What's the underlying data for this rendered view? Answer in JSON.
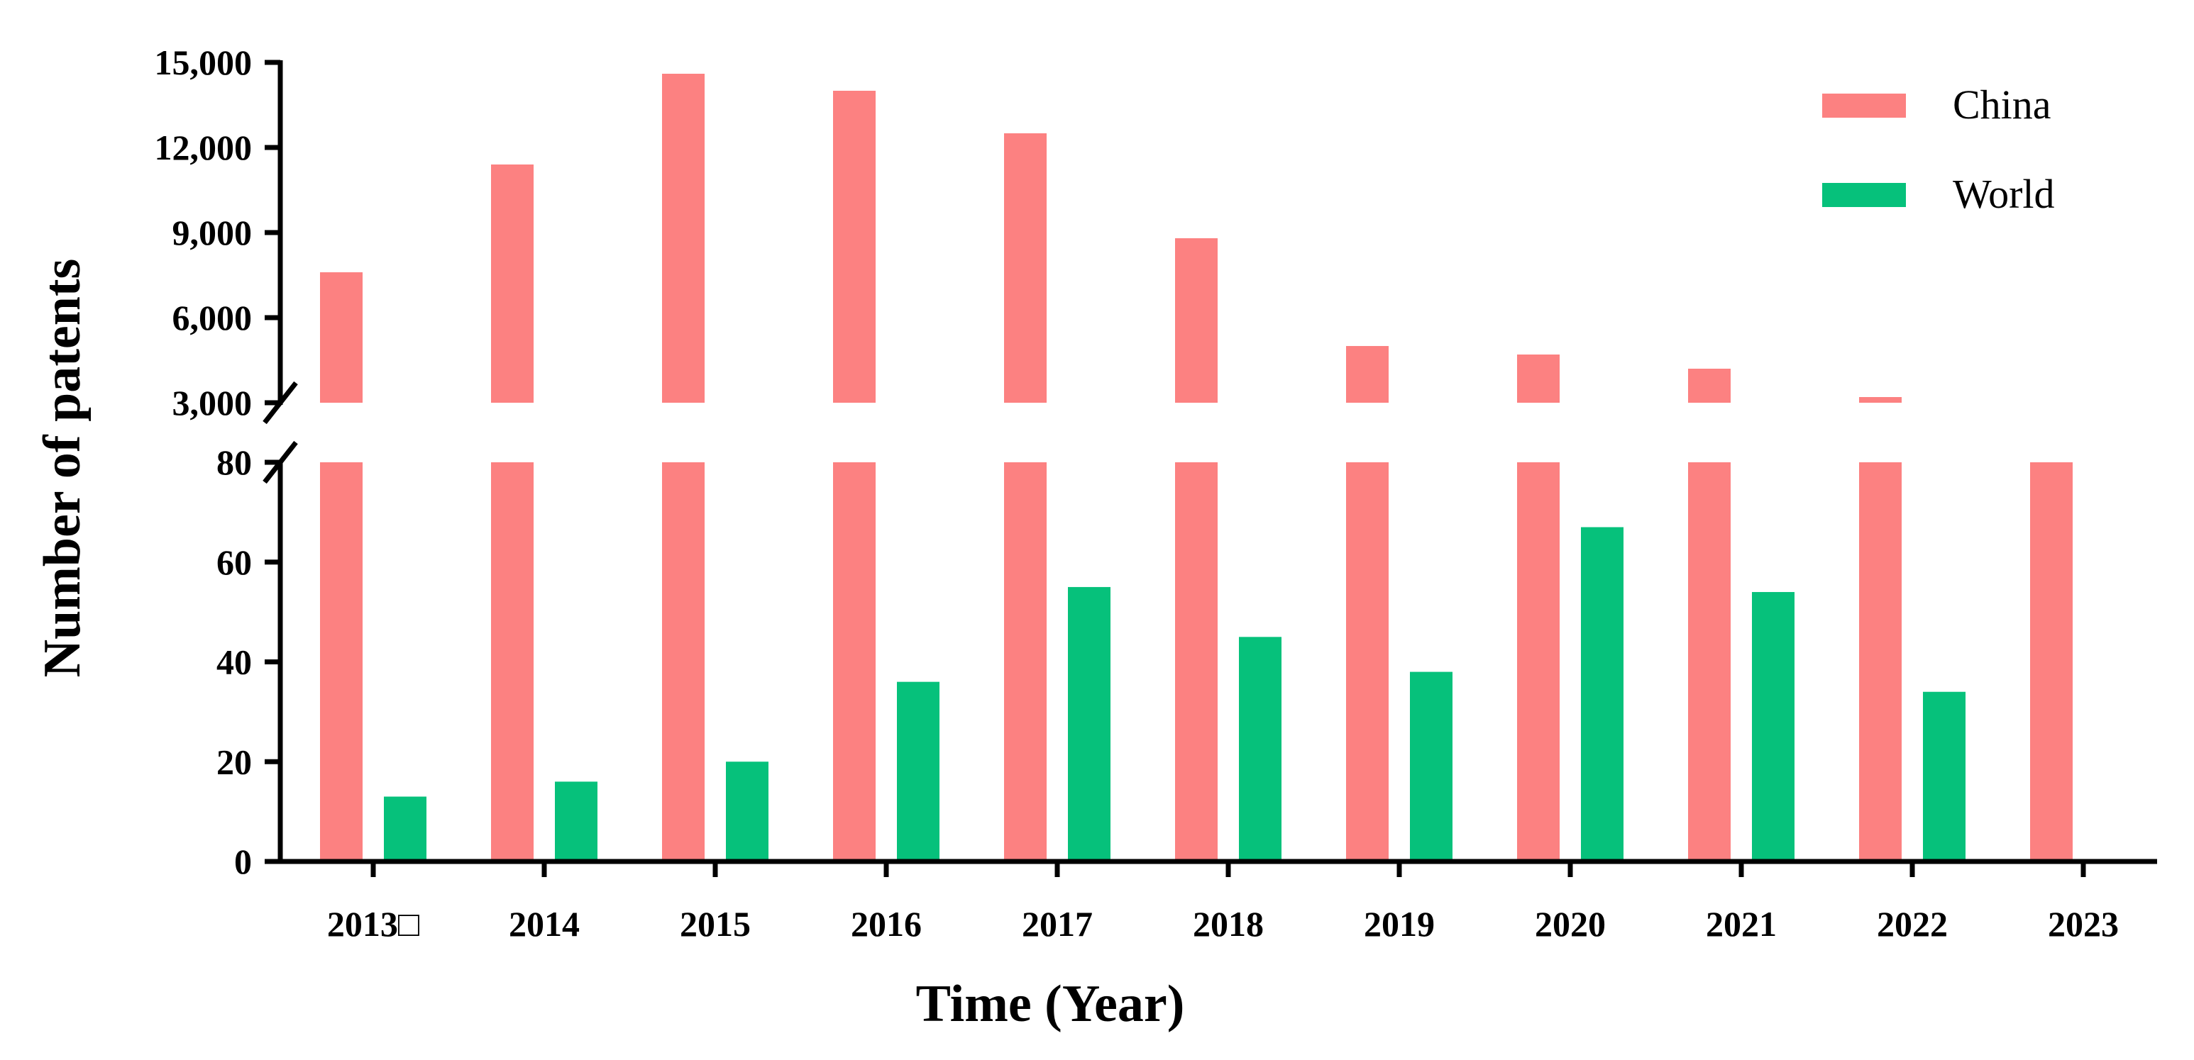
{
  "chart_data": {
    "type": "bar",
    "title": "",
    "xlabel": "Time (Year)",
    "ylabel": "Number of patents",
    "categories": [
      "2013□",
      "2014",
      "2015",
      "2016",
      "2017",
      "2018",
      "2019",
      "2020",
      "2021",
      "2022",
      "2023"
    ],
    "series": [
      {
        "name": "China",
        "color": "#fc8181",
        "values": [
          7600,
          11400,
          14600,
          14000,
          12500,
          8800,
          5000,
          4700,
          4200,
          3200,
          3000
        ]
      },
      {
        "name": "World",
        "color": "#06c17b",
        "values": [
          13,
          16,
          20,
          36,
          55,
          45,
          38,
          67,
          54,
          34,
          0
        ]
      }
    ],
    "y_axis_break": true,
    "lower_ylim": [
      0,
      80
    ],
    "lower_yticks": [
      0,
      20,
      40,
      60,
      80
    ],
    "lower_ytick_labels": [
      "0",
      "20",
      "40",
      "60",
      "80"
    ],
    "upper_ylim": [
      3000,
      15000
    ],
    "upper_yticks": [
      3000,
      6000,
      9000,
      12000,
      15000
    ],
    "upper_ytick_labels": [
      "3,000",
      "6,000",
      "9,000",
      "12,000",
      "15,000"
    ],
    "grid": false,
    "legend_position": "top-right"
  }
}
